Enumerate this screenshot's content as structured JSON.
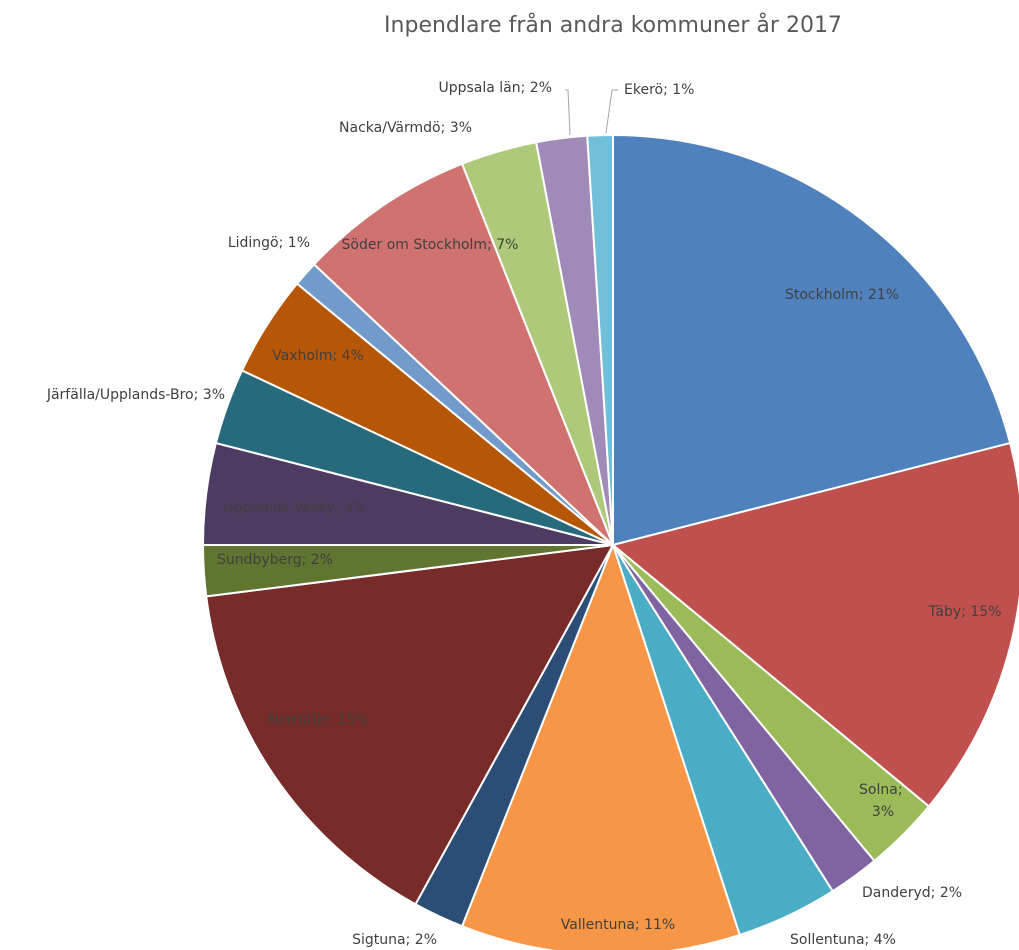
{
  "chart_data": {
    "type": "pie",
    "title": "Inpendlare från andra kommuner år 2017",
    "label_separator": "; ",
    "categories": [
      "Stockholm",
      "Täby",
      "Solna",
      "Danderyd",
      "Sollentuna",
      "Vallentuna",
      "Sigtuna",
      "Norrtälje",
      "Sundbyberg",
      "Upplands Väsby",
      "Järfälla/Upplands-Bro",
      "Vaxholm",
      "Lidingö",
      "Söder om Stockholm",
      "Nacka/Värmdö",
      "Uppsala län",
      "Ekerö"
    ],
    "values": [
      21,
      15,
      3,
      2,
      4,
      11,
      2,
      15,
      2,
      4,
      3,
      4,
      1,
      7,
      3,
      2,
      1
    ],
    "value_labels": [
      "21%",
      "15%",
      "3%",
      "2%",
      "4%",
      "11%",
      "2%",
      "15%",
      "2%",
      "4%",
      "3%",
      "4%",
      "1%",
      "7%",
      "3%",
      "2%",
      "1%"
    ],
    "colors": [
      "#4f81bd",
      "#c0504d",
      "#9bbb59",
      "#8064a2",
      "#4bacc6",
      "#f79646",
      "#2c4d75",
      "#772c2a",
      "#5f7530",
      "#4d3b62",
      "#276a7c",
      "#b65708",
      "#729aca",
      "#d07370",
      "#afc97a",
      "#a08bb8",
      "#6fc0d8"
    ]
  }
}
